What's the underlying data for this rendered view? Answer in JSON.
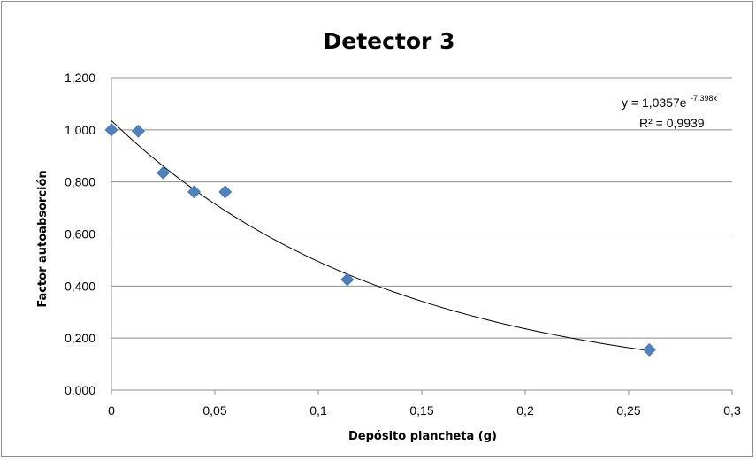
{
  "chart_data": {
    "type": "scatter",
    "title": "Detector 3",
    "xlabel": "Depósito plancheta (g)",
    "ylabel": "Factor autoabsorción",
    "xlim": [
      0,
      0.3
    ],
    "ylim": [
      0,
      1.2
    ],
    "x_ticks": [
      "0",
      "0,05",
      "0,1",
      "0,15",
      "0,2",
      "0,25",
      "0,3"
    ],
    "y_ticks": [
      "0,000",
      "0,200",
      "0,400",
      "0,600",
      "0,800",
      "1,000",
      "1,200"
    ],
    "grid": "horizontal",
    "marker_color": "#4f81bd",
    "points": [
      {
        "x": 0,
        "y": 1.0
      },
      {
        "x": 0.013,
        "y": 0.995
      },
      {
        "x": 0.025,
        "y": 0.835
      },
      {
        "x": 0.04,
        "y": 0.762
      },
      {
        "x": 0.055,
        "y": 0.762
      },
      {
        "x": 0.114,
        "y": 0.425
      },
      {
        "x": 0.26,
        "y": 0.155
      }
    ],
    "trendline": {
      "type": "exponential",
      "a": 1.0357,
      "b": -7.398,
      "color": "#000000",
      "equation_main": "y = 1,0357e",
      "equation_exponent": "-7,398x",
      "r_squared": "R² = 0,9939"
    }
  }
}
